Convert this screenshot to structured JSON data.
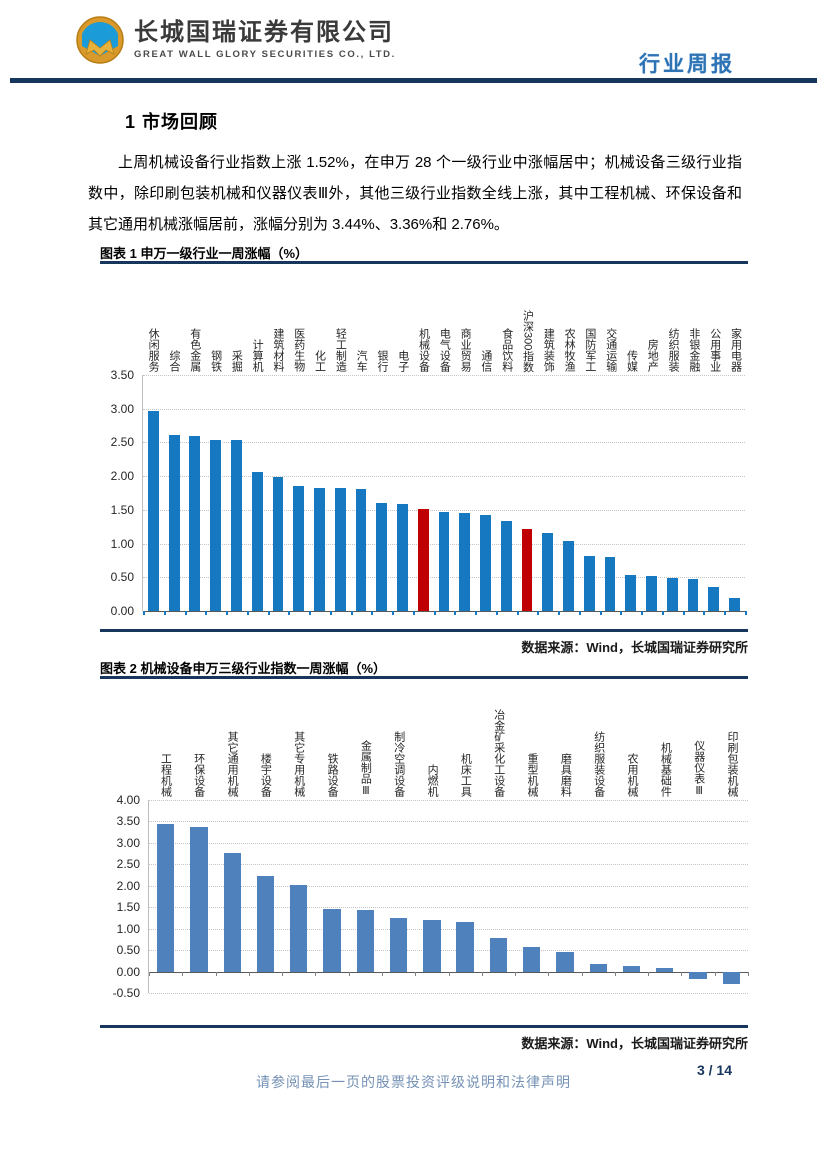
{
  "header": {
    "company_cn": "长城国瑞证券有限公司",
    "company_en": "GREAT WALL GLORY SECURITIES CO., LTD.",
    "doc_type": "行业周报"
  },
  "section": {
    "heading": "1 市场回顾",
    "paragraph": "上周机械设备行业指数上涨 1.52%，在申万 28 个一级行业中涨幅居中；机械设备三级行业指数中，除印刷包装机械和仪器仪表Ⅲ外，其他三级行业指数全线上涨，其中工程机械、环保设备和其它通用机械涨幅居前，涨幅分别为 3.44%、3.36%和 2.76%。"
  },
  "figure1": {
    "caption": "图表 1 申万一级行业一周涨幅（%）",
    "source": "数据来源：Wind，长城国瑞证券研究所"
  },
  "figure2": {
    "caption": "图表 2 机械设备申万三级行业指数一周涨幅（%）",
    "source": "数据来源：Wind，长城国瑞证券研究所"
  },
  "footer": {
    "disclaimer": "请参阅最后一页的股票投资评级说明和法律声明",
    "page": "3 / 14"
  },
  "colors": {
    "rule_navy": "#17365d",
    "chart1_bar_blue": "#1778c2",
    "chart1_bar_red": "#c00000",
    "chart2_bar_blue": "#4f81bd",
    "doc_type_blue": "#2e74b5",
    "logo_gold": "#d99a2b",
    "logo_blue": "#1b9cd8"
  },
  "chart_data": [
    {
      "type": "bar",
      "title": "申万一级行业一周涨幅（%）",
      "categories": [
        "休闲服务",
        "综合",
        "有色金属",
        "钢铁",
        "采掘",
        "计算机",
        "建筑材料",
        "医药生物",
        "化工",
        "轻工制造",
        "汽车",
        "银行",
        "电子",
        "机械设备",
        "电气设备",
        "商业贸易",
        "通信",
        "食品饮料",
        "沪深300指数",
        "建筑装饰",
        "农林牧渔",
        "国防军工",
        "交通运输",
        "传媒",
        "房地产",
        "纺织服装",
        "非银金融",
        "公用事业",
        "家用电器"
      ],
      "values": [
        2.97,
        2.61,
        2.6,
        2.53,
        2.53,
        2.06,
        1.99,
        1.85,
        1.83,
        1.82,
        1.81,
        1.6,
        1.59,
        1.52,
        1.47,
        1.45,
        1.42,
        1.33,
        1.22,
        1.15,
        1.04,
        0.81,
        0.8,
        0.54,
        0.52,
        0.49,
        0.47,
        0.35,
        0.19
      ],
      "bar_color": "#1778c2",
      "highlight_indices": [
        13,
        18
      ],
      "highlight_color": "#c00000",
      "ylim": [
        0,
        3.5
      ],
      "ytick_step": 0.5,
      "grid": true,
      "legend": "none"
    },
    {
      "type": "bar",
      "title": "机械设备申万三级行业指数一周涨幅（%）",
      "categories": [
        "工程机械",
        "环保设备",
        "其它通用机械",
        "楼宇设备",
        "其它专用机械",
        "铁路设备",
        "金属制品Ⅲ",
        "制冷空调设备",
        "内燃机",
        "机床工具",
        "冶金矿采化工设备",
        "重型机械",
        "磨具磨料",
        "纺织服装设备",
        "农用机械",
        "机械基础件",
        "仪器仪表Ⅲ",
        "印刷包装机械"
      ],
      "values": [
        3.44,
        3.36,
        2.76,
        2.23,
        2.01,
        1.45,
        1.43,
        1.26,
        1.2,
        1.15,
        0.79,
        0.57,
        0.45,
        0.17,
        0.14,
        0.08,
        -0.17,
        -0.3
      ],
      "bar_color": "#4f81bd",
      "highlight_indices": [],
      "highlight_color": "#c00000",
      "ylim": [
        -0.5,
        4.0
      ],
      "ytick_step": 0.5,
      "grid": true,
      "legend": "none"
    }
  ]
}
